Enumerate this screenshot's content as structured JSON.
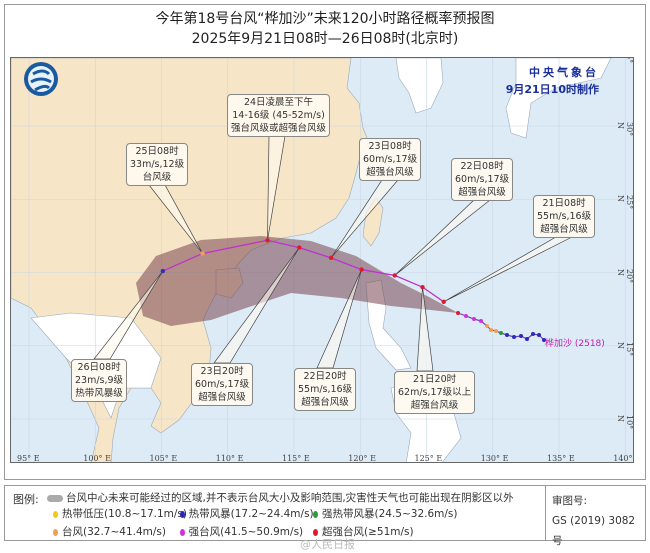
{
  "title": "今年第18号台风“桦加沙”未来120小时路径概率预报图",
  "subtitle": "2025年9月21日08时—26日08时(北京时)",
  "issuer": {
    "name": "中央气象台",
    "issued": "9月21日10时制作"
  },
  "typhoon_label": "桦加沙 (2518)",
  "lon_ticks": [
    "95° E",
    "100° E",
    "105° E",
    "110° E",
    "115° E",
    "120° E",
    "125° E",
    "130° E",
    "135° E",
    "140° E"
  ],
  "lat_ticks": [
    "35° N",
    "30° N",
    "25° N",
    "20° N",
    "15° N",
    "10° N"
  ],
  "forecast_points": [
    {
      "time": "21日08时",
      "wind": "55m/s,16级",
      "level": "超强台风级",
      "lon": 126.3,
      "lat": 18.0,
      "color": "#d81e2c"
    },
    {
      "time": "21日20时",
      "wind": "62m/s,17级以上",
      "level": "超强台风级",
      "lon": 124.7,
      "lat": 19.0,
      "color": "#d81e2c"
    },
    {
      "time": "22日08时",
      "wind": "60m/s,17级",
      "level": "超强台风级",
      "lon": 122.6,
      "lat": 19.8,
      "color": "#d81e2c"
    },
    {
      "time": "22日20时",
      "wind": "55m/s,16级",
      "level": "超强台风级",
      "lon": 120.1,
      "lat": 20.2,
      "color": "#d81e2c"
    },
    {
      "time": "23日08时",
      "wind": "60m/s,17级",
      "level": "超强台风级",
      "lon": 117.8,
      "lat": 21.0,
      "color": "#d81e2c"
    },
    {
      "time": "23日20时",
      "wind": "60m/s,17级",
      "level": "超强台风级",
      "lon": 115.4,
      "lat": 21.7,
      "color": "#d81e2c"
    },
    {
      "time": "24日凌晨至下午",
      "wind": "14-16级 (45-52m/s)",
      "level": "强台风级或超强台风级",
      "lon": 113.0,
      "lat": 22.2,
      "color": "#d81e2c"
    },
    {
      "time": "25日08时",
      "wind": "33m/s,12级",
      "level": "台风级",
      "lon": 108.1,
      "lat": 21.3,
      "color": "#f0a050"
    },
    {
      "time": "26日08时",
      "wind": "23m/s,9级",
      "level": "热带风暴级",
      "lon": 105.1,
      "lat": 20.1,
      "color": "#3030c0"
    }
  ],
  "legend": {
    "key": "图例:",
    "cone": "台风中心未来可能经过的区域,并不表示台风大小及影响范围,灾害性天气也可能出现在阴影区以外",
    "items": [
      {
        "label": "热带低压(10.8~17.1m/s)",
        "color": "#f2c811"
      },
      {
        "label": "热带风暴(17.2~24.4m/s)",
        "color": "#2a2ab8"
      },
      {
        "label": "强热带风暴(24.5~32.6m/s)",
        "color": "#2a9a3a"
      },
      {
        "label": "台风(32.7~41.4m/s)",
        "color": "#f0a050"
      },
      {
        "label": "强台风(41.5~50.9m/s)",
        "color": "#d030e0"
      },
      {
        "label": "超强台风(≥51m/s)",
        "color": "#d81e2c"
      }
    ]
  },
  "approval": {
    "label": "审图号:",
    "number": "GS (2019) 3082号"
  },
  "watermark": "@人民日报"
}
